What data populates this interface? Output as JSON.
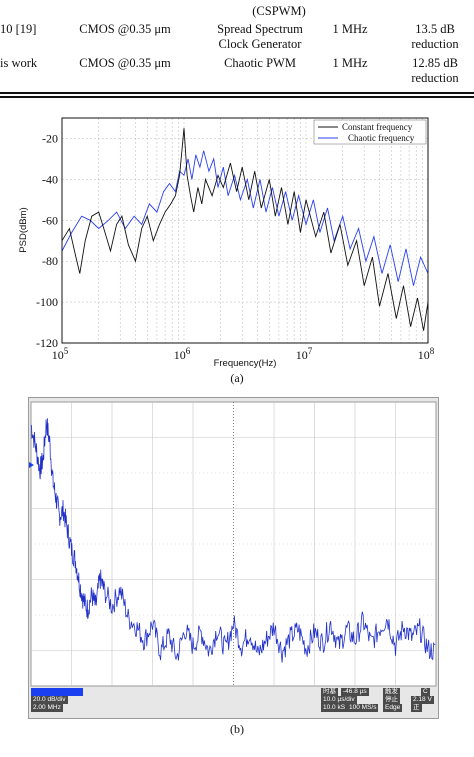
{
  "table": {
    "header_fragment": {
      "col3": "(CSPWM)"
    },
    "rows": [
      {
        "ref": "10 [19]",
        "tech": "CMOS @0.35 μm",
        "method_line1": "Spread Spectrum",
        "method_line2": "Clock Generator",
        "freq": "1 MHz",
        "result_line1": "13.5 dB",
        "result_line2": "reduction"
      },
      {
        "ref": "is work",
        "tech": "CMOS @0.35 μm",
        "method_line1": "Chaotic PWM",
        "method_line2": "",
        "freq": "1 MHz",
        "result_line1": "12.85 dB",
        "result_line2": "reduction"
      }
    ]
  },
  "figure_a": {
    "caption": "(a)",
    "chart_data": {
      "type": "line",
      "xlabel": "Frequency(Hz)",
      "ylabel": "PSD(dBm)",
      "xscale": "log",
      "xlim": [
        100000,
        100000000
      ],
      "ylim": [
        -120,
        -10
      ],
      "x_ticks": [
        {
          "base": "10",
          "exp": "5"
        },
        {
          "base": "10",
          "exp": "6"
        },
        {
          "base": "10",
          "exp": "7"
        },
        {
          "base": "10",
          "exp": "8"
        }
      ],
      "y_ticks": [
        "-20",
        "-40",
        "-60",
        "-80",
        "-100",
        "-120"
      ],
      "y_tick_values": [
        -20,
        -40,
        -60,
        -80,
        -100,
        -120
      ],
      "grid": true,
      "legend_position": "top-right",
      "series": [
        {
          "name": "Constant frequency",
          "color": "#111111",
          "points": [
            [
              100000,
              -70
            ],
            [
              115000,
              -64
            ],
            [
              130000,
              -78
            ],
            [
              140000,
              -86
            ],
            [
              155000,
              -70
            ],
            [
              175000,
              -58
            ],
            [
              200000,
              -56
            ],
            [
              225000,
              -66
            ],
            [
              250000,
              -75
            ],
            [
              280000,
              -62
            ],
            [
              310000,
              -58
            ],
            [
              350000,
              -72
            ],
            [
              400000,
              -80
            ],
            [
              450000,
              -64
            ],
            [
              500000,
              -58
            ],
            [
              560000,
              -70
            ],
            [
              630000,
              -62
            ],
            [
              700000,
              -56
            ],
            [
              780000,
              -52
            ],
            [
              850000,
              -48
            ],
            [
              920000,
              -38
            ],
            [
              1000000,
              -15
            ],
            [
              1060000,
              -38
            ],
            [
              1130000,
              -48
            ],
            [
              1200000,
              -56
            ],
            [
              1300000,
              -44
            ],
            [
              1400000,
              -52
            ],
            [
              1500000,
              -40
            ],
            [
              1700000,
              -48
            ],
            [
              1900000,
              -38
            ],
            [
              2100000,
              -44
            ],
            [
              2400000,
              -32
            ],
            [
              2700000,
              -46
            ],
            [
              3000000,
              -34
            ],
            [
              3400000,
              -50
            ],
            [
              3800000,
              -36
            ],
            [
              4300000,
              -54
            ],
            [
              5000000,
              -40
            ],
            [
              5600000,
              -58
            ],
            [
              6300000,
              -44
            ],
            [
              7100000,
              -62
            ],
            [
              8000000,
              -46
            ],
            [
              9000000,
              -66
            ],
            [
              10000000,
              -50
            ],
            [
              12000000,
              -68
            ],
            [
              14000000,
              -56
            ],
            [
              16000000,
              -76
            ],
            [
              19000000,
              -62
            ],
            [
              22000000,
              -82
            ],
            [
              26000000,
              -70
            ],
            [
              30000000,
              -92
            ],
            [
              35000000,
              -78
            ],
            [
              40000000,
              -102
            ],
            [
              47000000,
              -86
            ],
            [
              55000000,
              -108
            ],
            [
              63000000,
              -92
            ],
            [
              72000000,
              -112
            ],
            [
              82000000,
              -98
            ],
            [
              92000000,
              -114
            ],
            [
              100000000,
              -100
            ]
          ]
        },
        {
          "name": "Chaotic frequency",
          "color": "#2a3ff0",
          "points": [
            [
              100000,
              -75
            ],
            [
              120000,
              -66
            ],
            [
              145000,
              -58
            ],
            [
              170000,
              -60
            ],
            [
              200000,
              -64
            ],
            [
              240000,
              -60
            ],
            [
              280000,
              -56
            ],
            [
              330000,
              -64
            ],
            [
              390000,
              -58
            ],
            [
              450000,
              -62
            ],
            [
              520000,
              -52
            ],
            [
              600000,
              -56
            ],
            [
              680000,
              -46
            ],
            [
              760000,
              -42
            ],
            [
              850000,
              -46
            ],
            [
              920000,
              -36
            ],
            [
              1000000,
              -38
            ],
            [
              1080000,
              -30
            ],
            [
              1160000,
              -40
            ],
            [
              1250000,
              -28
            ],
            [
              1350000,
              -34
            ],
            [
              1450000,
              -26
            ],
            [
              1600000,
              -36
            ],
            [
              1750000,
              -30
            ],
            [
              1900000,
              -44
            ],
            [
              2100000,
              -34
            ],
            [
              2300000,
              -48
            ],
            [
              2600000,
              -38
            ],
            [
              2900000,
              -50
            ],
            [
              3300000,
              -40
            ],
            [
              3700000,
              -54
            ],
            [
              4200000,
              -40
            ],
            [
              4700000,
              -56
            ],
            [
              5300000,
              -44
            ],
            [
              6000000,
              -58
            ],
            [
              6800000,
              -46
            ],
            [
              7700000,
              -60
            ],
            [
              8700000,
              -48
            ],
            [
              10000000,
              -62
            ],
            [
              11500000,
              -50
            ],
            [
              13000000,
              -66
            ],
            [
              15000000,
              -54
            ],
            [
              17000000,
              -70
            ],
            [
              20000000,
              -58
            ],
            [
              23000000,
              -74
            ],
            [
              27000000,
              -64
            ],
            [
              31000000,
              -80
            ],
            [
              36000000,
              -68
            ],
            [
              42000000,
              -86
            ],
            [
              49000000,
              -72
            ],
            [
              57000000,
              -90
            ],
            [
              66000000,
              -74
            ],
            [
              76000000,
              -92
            ],
            [
              87000000,
              -78
            ],
            [
              100000000,
              -86
            ]
          ]
        }
      ]
    }
  },
  "figure_b": {
    "caption": "(b)",
    "status_left": [
      "20.0 dB/div",
      "2.00 MHz"
    ],
    "status_right_top": [
      "时基",
      "-46.8 µs",
      "触发",
      "C"
    ],
    "status_right_mid": [
      "10.0 µs/div",
      "停止",
      "2.18 V"
    ],
    "status_right_bot": [
      "10.0 kS",
      "100 MS/s",
      "Edge",
      "正"
    ],
    "trace_color": "#1f2fc8",
    "chart_data": {
      "type": "line",
      "x": [
        0,
        0.012,
        0.022,
        0.03,
        0.038,
        0.046,
        0.054,
        0.062,
        0.07,
        0.08,
        0.09,
        0.1,
        0.11,
        0.12,
        0.13,
        0.14,
        0.15,
        0.16,
        0.17,
        0.18,
        0.2,
        0.22,
        0.24,
        0.26,
        0.28,
        0.3,
        0.32,
        0.34,
        0.36,
        0.38,
        0.4,
        0.42,
        0.44,
        0.46,
        0.48,
        0.5,
        0.52,
        0.54,
        0.56,
        0.58,
        0.6,
        0.62,
        0.64,
        0.66,
        0.68,
        0.7,
        0.72,
        0.74,
        0.76,
        0.78,
        0.8,
        0.82,
        0.84,
        0.86,
        0.88,
        0.9,
        0.92,
        0.94,
        0.96,
        0.98,
        1.0
      ],
      "values": [
        0.92,
        0.84,
        0.76,
        0.8,
        0.93,
        0.86,
        0.72,
        0.66,
        0.6,
        0.62,
        0.55,
        0.48,
        0.44,
        0.36,
        0.3,
        0.27,
        0.32,
        0.28,
        0.38,
        0.34,
        0.28,
        0.34,
        0.24,
        0.21,
        0.16,
        0.22,
        0.12,
        0.18,
        0.1,
        0.2,
        0.14,
        0.19,
        0.12,
        0.2,
        0.13,
        0.22,
        0.14,
        0.19,
        0.11,
        0.16,
        0.21,
        0.12,
        0.17,
        0.2,
        0.13,
        0.19,
        0.15,
        0.22,
        0.14,
        0.2,
        0.16,
        0.23,
        0.15,
        0.2,
        0.24,
        0.14,
        0.21,
        0.17,
        0.2,
        0.13,
        0.12
      ]
    }
  }
}
